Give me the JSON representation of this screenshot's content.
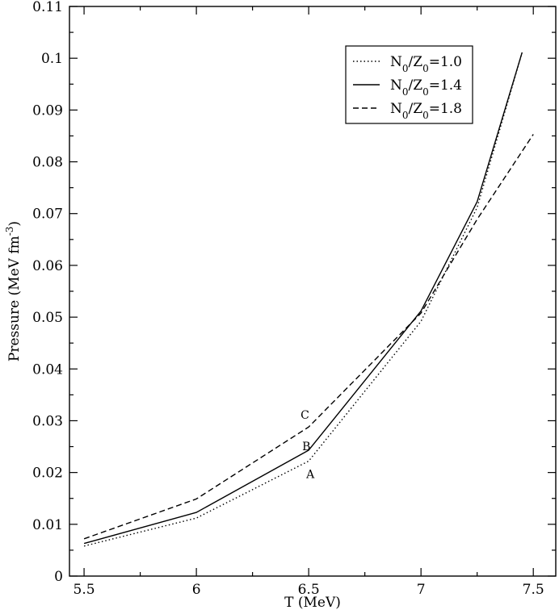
{
  "chart_data": {
    "type": "line",
    "xlabel": "T (MeV)",
    "ylabel": {
      "base": "Pressure (MeV fm",
      "sup": "-3",
      "tail": ")"
    },
    "xlim": [
      5.435,
      7.6
    ],
    "ylim": [
      0,
      0.11
    ],
    "x_ticks": [
      5.5,
      6,
      6.5,
      7,
      7.5
    ],
    "x_tick_labels": [
      "5.5",
      "6",
      "6.5",
      "7",
      "7.5"
    ],
    "x_minor_ticks": [
      5.75,
      6.25,
      6.75,
      7.25
    ],
    "y_ticks": [
      0,
      0.01,
      0.02,
      0.03,
      0.04,
      0.05,
      0.06,
      0.07,
      0.08,
      0.09,
      0.1,
      0.11
    ],
    "y_tick_labels": [
      "0",
      "0.01",
      "0.02",
      "0.03",
      "0.04",
      "0.05",
      "0.06",
      "0.07",
      "0.08",
      "0.09",
      "0.1",
      "0.11"
    ],
    "y_minor_ticks": [
      0.005,
      0.015,
      0.025,
      0.035,
      0.045,
      0.055,
      0.065,
      0.075,
      0.085,
      0.095,
      0.105
    ],
    "grid": false,
    "legend_position": "top-right",
    "series": [
      {
        "label_parts": {
          "a": "N",
          "a_sub": "0",
          "b": "/Z",
          "b_sub": "0",
          "c": "=1.0"
        },
        "dash": "dotted",
        "x": [
          5.5,
          6,
          6.5,
          7,
          7.25,
          7.45
        ],
        "y": [
          0.0058,
          0.0112,
          0.0222,
          0.0492,
          0.0712,
          0.1011
        ]
      },
      {
        "label_parts": {
          "a": "N",
          "a_sub": "0",
          "b": "/Z",
          "b_sub": "0",
          "c": "=1.4"
        },
        "dash": "solid",
        "x": [
          5.5,
          6,
          6.5,
          7,
          7.25,
          7.45
        ],
        "y": [
          0.0063,
          0.0123,
          0.0243,
          0.0512,
          0.0723,
          0.1011
        ]
      },
      {
        "label_parts": {
          "a": "N",
          "a_sub": "0",
          "b": "/Z",
          "b_sub": "0",
          "c": "=1.8"
        },
        "dash": "dashed",
        "x": [
          5.5,
          6,
          6.5,
          7,
          7.25,
          7.5
        ],
        "y": [
          0.0072,
          0.0149,
          0.0288,
          0.0508,
          0.0689,
          0.0853
        ]
      }
    ],
    "annotations": [
      {
        "text": "A",
        "x": 6.5,
        "y": 0.0222
      },
      {
        "text": "B",
        "x": 6.5,
        "y": 0.0243
      },
      {
        "text": "C",
        "x": 6.5,
        "y": 0.0288
      }
    ]
  }
}
